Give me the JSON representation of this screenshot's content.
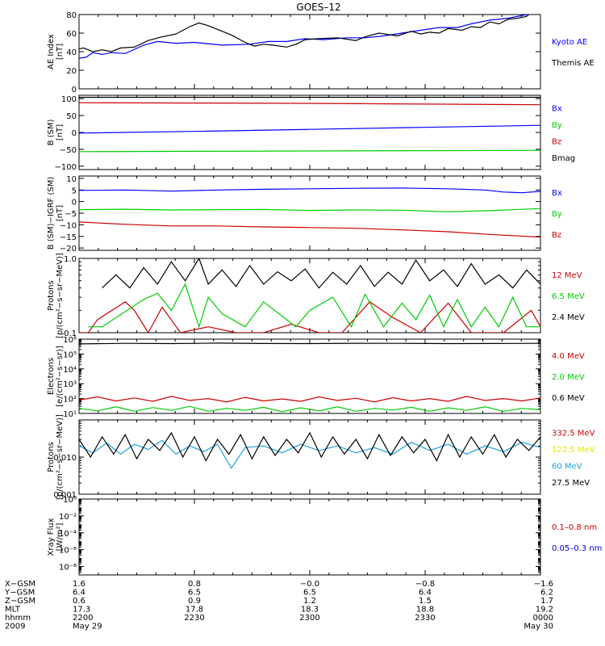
{
  "title": "GOES–12",
  "chart_data": [
    {
      "type": "line",
      "ylabel_lines": [
        "AE Index",
        "[nT]"
      ],
      "ylim": [
        0,
        80
      ],
      "yticks": [
        {
          "v": 0,
          "label": "0"
        },
        {
          "v": 20,
          "label": "20"
        },
        {
          "v": 40,
          "label": "40"
        },
        {
          "v": 60,
          "label": "60"
        },
        {
          "v": 80,
          "label": "80"
        }
      ],
      "series": [
        {
          "name": "Kyoto AE",
          "color": "#0000ff",
          "x": [
            0,
            1.5,
            3,
            5,
            7,
            10,
            14,
            17,
            21,
            25,
            31,
            37,
            41,
            45,
            49,
            53,
            58,
            62,
            66,
            70,
            74,
            78,
            82,
            85,
            89,
            93,
            96,
            100
          ],
          "y": [
            33,
            34,
            39,
            37,
            39,
            38,
            47,
            51,
            49,
            50,
            47,
            48,
            51,
            51,
            54,
            53,
            55,
            55,
            57,
            60,
            63,
            66,
            66,
            70,
            74,
            76,
            79,
            82
          ]
        },
        {
          "name": "Themis AE",
          "color": "#000000",
          "x": [
            0,
            1,
            3,
            5,
            7,
            9,
            12,
            15,
            18,
            21,
            24,
            26,
            28,
            31,
            33,
            36,
            38,
            40,
            42,
            45,
            47,
            49,
            52,
            56,
            60,
            62,
            65,
            69,
            72,
            74,
            76,
            78,
            80,
            83,
            85,
            87,
            89,
            91,
            93,
            95,
            97,
            98,
            100
          ],
          "y": [
            43,
            44,
            40,
            42,
            40,
            44,
            45,
            52,
            56,
            59,
            67,
            71,
            68,
            62,
            58,
            50,
            46,
            48,
            47,
            45,
            48,
            53,
            54,
            55,
            52,
            56,
            60,
            57,
            62,
            59,
            61,
            60,
            65,
            63,
            67,
            66,
            72,
            70,
            75,
            76,
            78,
            82,
            84
          ]
        }
      ]
    },
    {
      "type": "line",
      "ylabel_lines": [
        "B (SM)",
        "[nT]"
      ],
      "ylim": [
        -110,
        110
      ],
      "yticks": [
        {
          "v": -100,
          "label": "−100"
        },
        {
          "v": -50,
          "label": "−50"
        },
        {
          "v": 0,
          "label": "0"
        },
        {
          "v": 50,
          "label": "50"
        },
        {
          "v": 100,
          "label": "100"
        }
      ],
      "series": [
        {
          "name": "Bx",
          "color": "#0000ff",
          "x": [
            0,
            25,
            50,
            75,
            100
          ],
          "y": [
            -2,
            3,
            9,
            15,
            21
          ]
        },
        {
          "name": "By",
          "color": "#00cc00",
          "x": [
            0,
            25,
            50,
            75,
            100
          ],
          "y": [
            -57,
            -56,
            -55,
            -54,
            -53
          ]
        },
        {
          "name": "Bz",
          "color": "#cc0000",
          "x": [
            0,
            25,
            50,
            75,
            100
          ],
          "y": [
            88,
            87,
            86,
            84,
            82
          ]
        },
        {
          "name": "Bmag",
          "color": "#000000",
          "x": [
            0,
            25,
            50,
            75,
            100
          ],
          "y": [
            104,
            104,
            104,
            104,
            104
          ]
        }
      ]
    },
    {
      "type": "line",
      "ylabel_lines": [
        "B (SM)−IGRF (SM)",
        "[nT]"
      ],
      "ylim": [
        -21,
        11
      ],
      "yticks": [
        {
          "v": -20,
          "label": "−20"
        },
        {
          "v": -15,
          "label": "−15"
        },
        {
          "v": -10,
          "label": "−10"
        },
        {
          "v": -5,
          "label": "−5"
        },
        {
          "v": 0,
          "label": "0"
        },
        {
          "v": 5,
          "label": "5"
        },
        {
          "v": 10,
          "label": "10"
        }
      ],
      "series": [
        {
          "name": "Bx",
          "color": "#0000ff",
          "x": [
            0,
            10,
            20,
            30,
            40,
            50,
            60,
            70,
            80,
            88,
            92,
            96,
            100
          ],
          "y": [
            4.8,
            5,
            4.5,
            5,
            5.3,
            5.5,
            5.7,
            5.8,
            5.5,
            5,
            4.1,
            3.8,
            4.4
          ]
        },
        {
          "name": "By",
          "color": "#00cc00",
          "x": [
            0,
            10,
            20,
            30,
            40,
            50,
            60,
            70,
            80,
            90,
            100
          ],
          "y": [
            -3.5,
            -3.3,
            -3.6,
            -3.5,
            -3.4,
            -3.8,
            -3.6,
            -3.7,
            -4.4,
            -3.8,
            -3.0
          ]
        },
        {
          "name": "Bz",
          "color": "#cc0000",
          "x": [
            0,
            10,
            20,
            30,
            40,
            50,
            60,
            70,
            80,
            90,
            100
          ],
          "y": [
            -8.8,
            -9.8,
            -10.5,
            -10.5,
            -10.9,
            -11.2,
            -11.5,
            -12.2,
            -13,
            -14.3,
            -15.3
          ]
        }
      ]
    },
    {
      "type": "line",
      "ylabel_lines": [
        "Protons",
        "[p/(cm²−s−sr−MeV)]"
      ],
      "log": true,
      "ylim": [
        0.1,
        1.0
      ],
      "yticks": [
        {
          "v": 0.1,
          "label": "0.1"
        },
        {
          "v": 1.0,
          "label": "1.0"
        }
      ],
      "series": [
        {
          "name": "12 MeV",
          "color": "#cc0000",
          "x": [
            0,
            2,
            4,
            10,
            12,
            15,
            18,
            22,
            28,
            34,
            40,
            46,
            52,
            57,
            63,
            68,
            74,
            80,
            85,
            92,
            98,
            100
          ],
          "y": [
            0.1,
            0.1,
            0.15,
            0.26,
            0.2,
            0.1,
            0.22,
            0.1,
            0.12,
            0.1,
            0.1,
            0.13,
            0.1,
            0.1,
            0.26,
            0.16,
            0.1,
            0.25,
            0.1,
            0.1,
            0.2,
            0.12
          ]
        },
        {
          "name": "6.5 MeV",
          "color": "#00cc00",
          "x": [
            2,
            5,
            14,
            17,
            20,
            23,
            26,
            28,
            31,
            36,
            40,
            47,
            50,
            55,
            59,
            62,
            66,
            70,
            73,
            76,
            79,
            82,
            85,
            88,
            91,
            94,
            97,
            100
          ],
          "y": [
            0.12,
            0.12,
            0.28,
            0.34,
            0.2,
            0.45,
            0.12,
            0.3,
            0.18,
            0.12,
            0.26,
            0.12,
            0.2,
            0.3,
            0.12,
            0.33,
            0.12,
            0.25,
            0.15,
            0.32,
            0.12,
            0.28,
            0.12,
            0.22,
            0.12,
            0.3,
            0.12,
            0.12
          ]
        },
        {
          "name": "2.4 MeV",
          "color": "#000000",
          "x": [
            5,
            8,
            11,
            14,
            17,
            20,
            23,
            26,
            28,
            31,
            34,
            37,
            40,
            43,
            46,
            49,
            52,
            55,
            58,
            61,
            64,
            67,
            70,
            73,
            76,
            79,
            82,
            85,
            88,
            91,
            94,
            97,
            100
          ],
          "y": [
            0.4,
            0.6,
            0.4,
            0.75,
            0.45,
            0.9,
            0.5,
            1.0,
            0.45,
            0.7,
            0.42,
            0.8,
            0.45,
            0.66,
            0.5,
            0.72,
            0.4,
            0.65,
            0.45,
            0.8,
            0.42,
            0.65,
            0.45,
            0.95,
            0.5,
            0.7,
            0.42,
            0.85,
            0.45,
            0.6,
            0.4,
            0.7,
            0.45
          ]
        }
      ]
    },
    {
      "type": "line",
      "ylabel_lines": [
        "Electrons",
        "[e/(cm²−s−sr)]"
      ],
      "log": true,
      "ylim": [
        10,
        1000000.0
      ],
      "yticks": [
        {
          "v": 10,
          "label": "10¹"
        },
        {
          "v": 100,
          "label": "10²"
        },
        {
          "v": 1000,
          "label": "10³"
        },
        {
          "v": 10000,
          "label": "10⁴"
        },
        {
          "v": 100000,
          "label": "10⁵"
        },
        {
          "v": 1000000,
          "label": "10⁶"
        }
      ],
      "series": [
        {
          "name": "4.0 MeV",
          "color": "#cc0000",
          "x": [
            0,
            4,
            8,
            12,
            16,
            20,
            24,
            28,
            32,
            36,
            40,
            44,
            48,
            52,
            56,
            60,
            64,
            68,
            72,
            76,
            80,
            84,
            88,
            92,
            96,
            100
          ],
          "y": [
            80,
            130,
            70,
            110,
            65,
            140,
            75,
            100,
            60,
            120,
            70,
            95,
            65,
            130,
            75,
            105,
            60,
            115,
            70,
            100,
            65,
            140,
            75,
            100,
            70,
            110
          ]
        },
        {
          "name": "2.0 MeV",
          "color": "#00cc00",
          "x": [
            0,
            4,
            8,
            12,
            16,
            20,
            24,
            28,
            32,
            36,
            40,
            44,
            48,
            52,
            56,
            60,
            64,
            68,
            72,
            76,
            80,
            84,
            88,
            92,
            96,
            100
          ],
          "y": [
            22,
            15,
            28,
            14,
            25,
            16,
            30,
            14,
            22,
            16,
            26,
            13,
            24,
            15,
            28,
            14,
            22,
            17,
            26,
            14,
            24,
            16,
            28,
            14,
            22,
            18
          ]
        },
        {
          "name": "0.6 MeV",
          "color": "#000000",
          "x": [
            0,
            10,
            20,
            30,
            40,
            50,
            60,
            70,
            80,
            90,
            100
          ],
          "y": [
            480000,
            520000,
            500000,
            540000,
            510000,
            500000,
            530000,
            520000,
            500000,
            510000,
            520000
          ]
        }
      ]
    },
    {
      "type": "line",
      "ylabel_lines": [
        "Protons",
        "[p/(cm²−s−sr−MeV)]"
      ],
      "log": true,
      "ylim": [
        0.001,
        0.1
      ],
      "yticks": [
        {
          "v": 0.001,
          "label": "0.001"
        },
        {
          "v": 0.01,
          "label": "0.010"
        }
      ],
      "series": [
        {
          "name": "332.5 MeV",
          "color": "#cc0000",
          "x": [],
          "y": []
        },
        {
          "name": "122.5 MeV",
          "color": "#e6e600",
          "x": [],
          "y": []
        },
        {
          "name": "60 MeV",
          "color": "#1ea0dc",
          "x": [
            0,
            3,
            6,
            9,
            12,
            15,
            18,
            21,
            24,
            27,
            30,
            33,
            36,
            40,
            44,
            48,
            52,
            56,
            60,
            64,
            68,
            72,
            76,
            80,
            84,
            88,
            92,
            96,
            100
          ],
          "y": [
            0.02,
            0.013,
            0.024,
            0.012,
            0.022,
            0.016,
            0.028,
            0.012,
            0.02,
            0.014,
            0.022,
            0.005,
            0.018,
            0.02,
            0.013,
            0.022,
            0.015,
            0.02,
            0.013,
            0.018,
            0.012,
            0.025,
            0.015,
            0.022,
            0.012,
            0.02,
            0.014,
            0.025,
            0.018
          ]
        },
        {
          "name": "27.5 MeV",
          "color": "#000000",
          "x": [
            0,
            2.5,
            5,
            7.5,
            10,
            12.5,
            15,
            17.5,
            20,
            22.5,
            25,
            27.5,
            30,
            32.5,
            35,
            37.5,
            40,
            42.5,
            45,
            47.5,
            50,
            52.5,
            55,
            57.5,
            60,
            62.5,
            65,
            67.5,
            70,
            72.5,
            75,
            77.5,
            80,
            82.5,
            85,
            87.5,
            90,
            92.5,
            95,
            97.5,
            100
          ],
          "y": [
            0.03,
            0.01,
            0.035,
            0.012,
            0.04,
            0.009,
            0.03,
            0.015,
            0.045,
            0.01,
            0.035,
            0.008,
            0.03,
            0.012,
            0.04,
            0.009,
            0.035,
            0.011,
            0.03,
            0.013,
            0.045,
            0.01,
            0.035,
            0.012,
            0.03,
            0.009,
            0.04,
            0.011,
            0.035,
            0.013,
            0.03,
            0.008,
            0.04,
            0.01,
            0.035,
            0.012,
            0.04,
            0.01,
            0.03,
            0.015,
            0.035
          ]
        }
      ]
    },
    {
      "type": "line",
      "ylabel_lines": [
        "Xray Flux",
        "[W/m²]"
      ],
      "log": true,
      "ylim": [
        1e-09,
        1
      ],
      "yticks": [
        {
          "v": 1e-08,
          "label": "10⁻⁸"
        },
        {
          "v": 1e-06,
          "label": "10⁻⁶"
        },
        {
          "v": 0.0001,
          "label": "10⁻⁴"
        },
        {
          "v": 0.01,
          "label": "10⁻²"
        },
        {
          "v": 1,
          "label": "10⁰"
        }
      ],
      "series": [
        {
          "name": "0.1–0.8 nm",
          "color": "#cc0000",
          "x": [],
          "y": []
        },
        {
          "name": "0.05–0.3 nm",
          "color": "#0000cc",
          "x": [],
          "y": []
        }
      ]
    }
  ],
  "orbit_table": {
    "row_labels": [
      "X−GSM",
      "Y−GSM",
      "Z−GSM",
      "MLT",
      "hhmm",
      "2009"
    ],
    "columns": [
      {
        "x": 0,
        "values": [
          "1.6",
          "6.4",
          "0.6",
          "17.3",
          "2200",
          "May 29"
        ]
      },
      {
        "x": 25,
        "values": [
          "0.8",
          "6.5",
          "0.9",
          "17.8",
          "2230",
          ""
        ]
      },
      {
        "x": 50,
        "values": [
          "−0.0",
          "6.5",
          "1.2",
          "18.3",
          "2300",
          ""
        ]
      },
      {
        "x": 75,
        "values": [
          "−0.8",
          "6.4",
          "1.5",
          "18.8",
          "2330",
          ""
        ]
      },
      {
        "x": 100,
        "values": [
          "−1.6",
          "6.2",
          "1.7",
          "19.2",
          "0000",
          "May 30"
        ]
      }
    ]
  }
}
